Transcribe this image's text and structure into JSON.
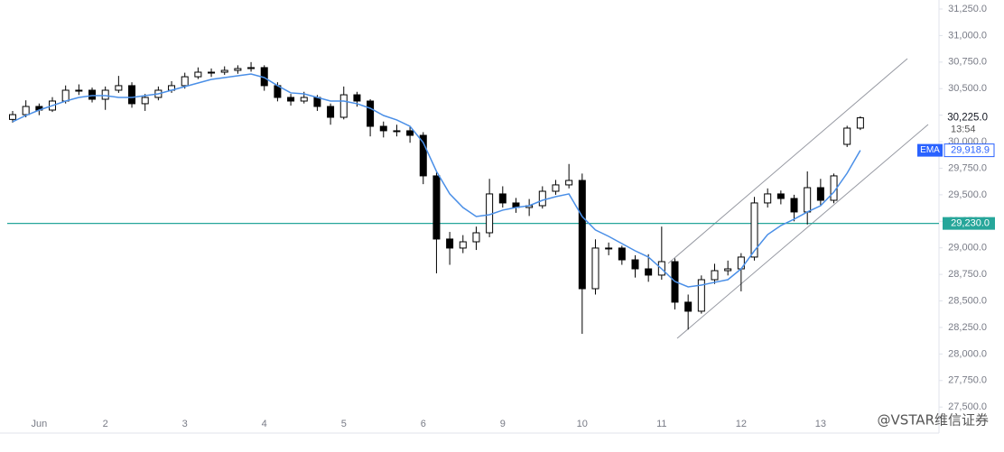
{
  "chart_data": {
    "type": "candlestick",
    "categories": [
      null,
      null,
      "Jun",
      null,
      null,
      null,
      null,
      "2",
      null,
      null,
      null,
      null,
      null,
      "3",
      null,
      null,
      null,
      null,
      null,
      "4",
      null,
      null,
      null,
      null,
      null,
      "5",
      null,
      null,
      null,
      null,
      null,
      "6",
      null,
      null,
      null,
      null,
      null,
      "9",
      null,
      null,
      null,
      null,
      null,
      "10",
      null,
      null,
      null,
      null,
      null,
      "11",
      null,
      null,
      null,
      null,
      null,
      "12",
      null,
      null,
      null,
      null,
      null,
      "13",
      null,
      null,
      null
    ],
    "open": [
      30210,
      30255,
      30332,
      30298,
      30383,
      30485,
      30485,
      30400,
      30485,
      30528,
      30358,
      30417,
      30485,
      30528,
      30612,
      30655,
      30655,
      30672,
      30689,
      30698,
      30528,
      30417,
      30383,
      30417,
      30332,
      30230,
      30442,
      30383,
      30145,
      30103,
      30103,
      30060,
      29678,
      29083,
      28998,
      29057,
      29142,
      29508,
      29423,
      29380,
      29397,
      29533,
      29593,
      29635,
      28615,
      28998,
      28998,
      28887,
      28802,
      28743,
      28870,
      28488,
      28403,
      28700,
      28785,
      28802,
      28913,
      29423,
      29508,
      29465,
      29338,
      29567,
      29448,
      29975,
      30128
    ],
    "high": [
      30290,
      30390,
      30360,
      30420,
      30530,
      30540,
      30510,
      30520,
      30620,
      30560,
      30450,
      30520,
      30570,
      30650,
      30700,
      30690,
      30710,
      30720,
      30750,
      30720,
      30560,
      30450,
      30470,
      30440,
      30360,
      30520,
      30470,
      30400,
      30190,
      30160,
      30140,
      30090,
      29710,
      29150,
      29120,
      29200,
      29650,
      29580,
      29470,
      29460,
      29580,
      29640,
      29790,
      29700,
      29080,
      29050,
      29020,
      28930,
      28940,
      29200,
      28900,
      28560,
      28740,
      28850,
      28880,
      28950,
      29480,
      29560,
      29540,
      29500,
      29720,
      29650,
      29700,
      30150,
      30240
    ],
    "low": [
      30180,
      30230,
      30250,
      30280,
      30360,
      30440,
      30370,
      30300,
      30460,
      30320,
      30290,
      30390,
      30460,
      30500,
      30590,
      30610,
      30630,
      30640,
      30660,
      30480,
      30380,
      30340,
      30360,
      30290,
      30160,
      30210,
      30330,
      30050,
      30040,
      30050,
      29990,
      29600,
      28760,
      28840,
      28950,
      28980,
      29100,
      29380,
      29330,
      29300,
      29370,
      29500,
      29560,
      28190,
      28560,
      28930,
      28840,
      28720,
      28680,
      28700,
      28420,
      28230,
      28380,
      28660,
      28740,
      28590,
      28880,
      29380,
      29410,
      29250,
      29220,
      29400,
      29420,
      29950,
      30110
    ],
    "close": [
      30255,
      30332,
      30298,
      30383,
      30485,
      30485,
      30400,
      30485,
      30528,
      30358,
      30417,
      30485,
      30528,
      30612,
      30655,
      30655,
      30672,
      30689,
      30698,
      30528,
      30417,
      30383,
      30417,
      30332,
      30230,
      30442,
      30383,
      30145,
      30103,
      30103,
      30060,
      29678,
      29083,
      28998,
      29057,
      29142,
      29508,
      29423,
      29380,
      29397,
      29533,
      29593,
      29635,
      28615,
      28998,
      28998,
      28887,
      28802,
      28743,
      28870,
      28488,
      28403,
      28700,
      28785,
      28802,
      28913,
      29423,
      29508,
      29465,
      29338,
      29567,
      29448,
      29678,
      30128,
      30225
    ],
    "last_label": "30,225.0",
    "countdown": "13:54",
    "up_color": "#ffffff",
    "down_color": "#000000",
    "overlays": [
      {
        "name": "EMA",
        "color": "#4a8fe7",
        "values": [
          30188,
          30247,
          30298,
          30340,
          30383,
          30417,
          30434,
          30434,
          30417,
          30417,
          30434,
          30451,
          30485,
          30519,
          30553,
          30587,
          30604,
          30621,
          30638,
          30604,
          30528,
          30460,
          30451,
          30417,
          30383,
          30383,
          30358,
          30315,
          30247,
          30205,
          30145,
          29992,
          29720,
          29508,
          29380,
          29295,
          29312,
          29355,
          29380,
          29397,
          29448,
          29482,
          29508,
          29295,
          29168,
          29108,
          29040,
          28972,
          28913,
          28802,
          28683,
          28632,
          28649,
          28675,
          28700,
          28802,
          28972,
          29125,
          29210,
          29270,
          29338,
          29397,
          29525,
          29703,
          29918.9
        ],
        "last_label": "29,918.9"
      }
    ],
    "hline": {
      "value": 29230,
      "label": "29,230.0",
      "color": "#26a69a"
    },
    "ylim": [
      27255,
      31335
    ],
    "yticks": [
      {
        "value": 27500,
        "label": "27,500.0"
      },
      {
        "value": 27750,
        "label": "27,750.0"
      },
      {
        "value": 28000,
        "label": "28,000.0"
      },
      {
        "value": 28250,
        "label": "28,250.0"
      },
      {
        "value": 28500,
        "label": "28,500.0"
      },
      {
        "value": 28750,
        "label": "28,750.0"
      },
      {
        "value": 29000,
        "label": "29,000.0"
      },
      {
        "value": 29250,
        "label": "29,250.0"
      },
      {
        "value": 29500,
        "label": "29,500.0"
      },
      {
        "value": 29750,
        "label": "29,750.0"
      },
      {
        "value": 30000,
        "label": "30,000.0"
      },
      {
        "value": 30250,
        "label": "30,250.0"
      },
      {
        "value": 30500,
        "label": "30,500.0"
      },
      {
        "value": 30750,
        "label": "30,750.0"
      },
      {
        "value": 31000,
        "label": "31,000.0"
      },
      {
        "value": 31250,
        "label": "31,250.0"
      }
    ],
    "watermark": "@VSTAR维信证券"
  }
}
